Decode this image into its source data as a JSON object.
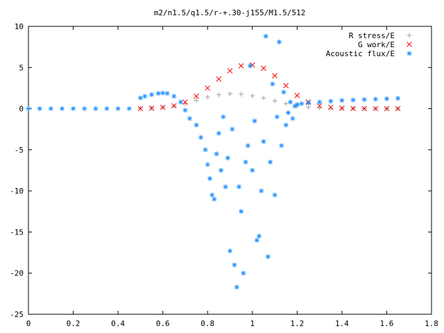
{
  "chart_data": {
    "type": "scatter",
    "title": "m2/n1.5/q1.5/r-+.30-j155/M1.5/512",
    "xlabel": "",
    "ylabel": "",
    "xlim": [
      0,
      1.8
    ],
    "ylim": [
      -25,
      10
    ],
    "xticks": [
      "0",
      "0.2",
      "0.4",
      "0.6",
      "0.8",
      "1",
      "1.2",
      "1.4",
      "1.6",
      "1.8"
    ],
    "yticks": [
      "10",
      "5",
      "0",
      "-5",
      "-10",
      "-15",
      "-20",
      "-25"
    ],
    "grid": false,
    "legend_position": "top-right",
    "series": [
      {
        "name": "R stress/E",
        "marker": "plus",
        "color": "#a0a0a0",
        "x": [
          0.5,
          0.55,
          0.6,
          0.65,
          0.7,
          0.75,
          0.8,
          0.85,
          0.9,
          0.95,
          1.0,
          1.05,
          1.1,
          1.15,
          1.2,
          1.25,
          1.3,
          1.35,
          1.4,
          1.45,
          1.5,
          1.55,
          1.6,
          1.65
        ],
        "y": [
          0.05,
          0.08,
          0.15,
          0.3,
          0.6,
          1.0,
          1.4,
          1.7,
          1.8,
          1.75,
          1.55,
          1.3,
          0.95,
          0.6,
          0.35,
          0.2,
          0.1,
          0.06,
          0.03,
          0.02,
          0.01,
          0.01,
          0.0,
          0.0
        ]
      },
      {
        "name": "G work/E",
        "marker": "cross",
        "color": "#ff0000",
        "x": [
          0.5,
          0.55,
          0.6,
          0.65,
          0.7,
          0.75,
          0.8,
          0.85,
          0.9,
          0.95,
          1.0,
          1.05,
          1.1,
          1.15,
          1.2,
          1.25,
          1.3,
          1.35,
          1.4,
          1.45,
          1.5,
          1.55,
          1.6,
          1.65
        ],
        "y": [
          0.0,
          0.05,
          0.15,
          0.35,
          0.8,
          1.5,
          2.5,
          3.6,
          4.6,
          5.2,
          5.3,
          4.9,
          4.0,
          2.8,
          1.6,
          0.8,
          0.35,
          0.15,
          0.05,
          0.02,
          0.0,
          0.0,
          0.0,
          0.0
        ]
      },
      {
        "name": "Acoustic flux/E",
        "marker": "star",
        "color": "#1e90ff",
        "x": [
          0.0,
          0.05,
          0.1,
          0.15,
          0.2,
          0.25,
          0.3,
          0.35,
          0.4,
          0.45,
          0.5,
          0.52,
          0.55,
          0.58,
          0.6,
          0.62,
          0.65,
          0.68,
          0.7,
          0.72,
          0.75,
          0.77,
          0.79,
          0.8,
          0.81,
          0.82,
          0.83,
          0.84,
          0.85,
          0.86,
          0.87,
          0.88,
          0.89,
          0.9,
          0.91,
          0.92,
          0.93,
          0.94,
          0.95,
          0.96,
          0.97,
          0.98,
          0.99,
          1.0,
          1.01,
          1.02,
          1.03,
          1.04,
          1.05,
          1.06,
          1.07,
          1.08,
          1.09,
          1.1,
          1.11,
          1.12,
          1.13,
          1.14,
          1.15,
          1.16,
          1.17,
          1.18,
          1.19,
          1.2,
          1.22,
          1.25,
          1.3,
          1.35,
          1.4,
          1.45,
          1.5,
          1.55,
          1.6,
          1.65
        ],
        "y": [
          0.0,
          0.0,
          0.0,
          0.0,
          0.0,
          0.0,
          0.0,
          0.0,
          0.0,
          0.0,
          1.3,
          1.5,
          1.7,
          1.85,
          1.9,
          1.85,
          1.5,
          0.8,
          -0.2,
          -1.2,
          -2.0,
          -3.5,
          -5.0,
          -6.8,
          -8.5,
          -10.5,
          -11.0,
          -5.5,
          -3.0,
          -7.5,
          -1.0,
          -9.5,
          -6.0,
          -17.3,
          -2.5,
          -19.0,
          -21.7,
          -9.5,
          -12.5,
          -20.0,
          -6.5,
          -4.5,
          5.2,
          -7.5,
          -1.5,
          -16.0,
          -15.5,
          -10.0,
          -4.0,
          8.8,
          -18.0,
          -6.5,
          3.0,
          -10.5,
          -1.0,
          8.1,
          -4.5,
          2.0,
          -2.0,
          -0.5,
          0.8,
          -1.2,
          0.3,
          0.5,
          0.6,
          0.7,
          0.8,
          0.9,
          1.0,
          1.05,
          1.1,
          1.15,
          1.2,
          1.25
        ]
      }
    ]
  }
}
